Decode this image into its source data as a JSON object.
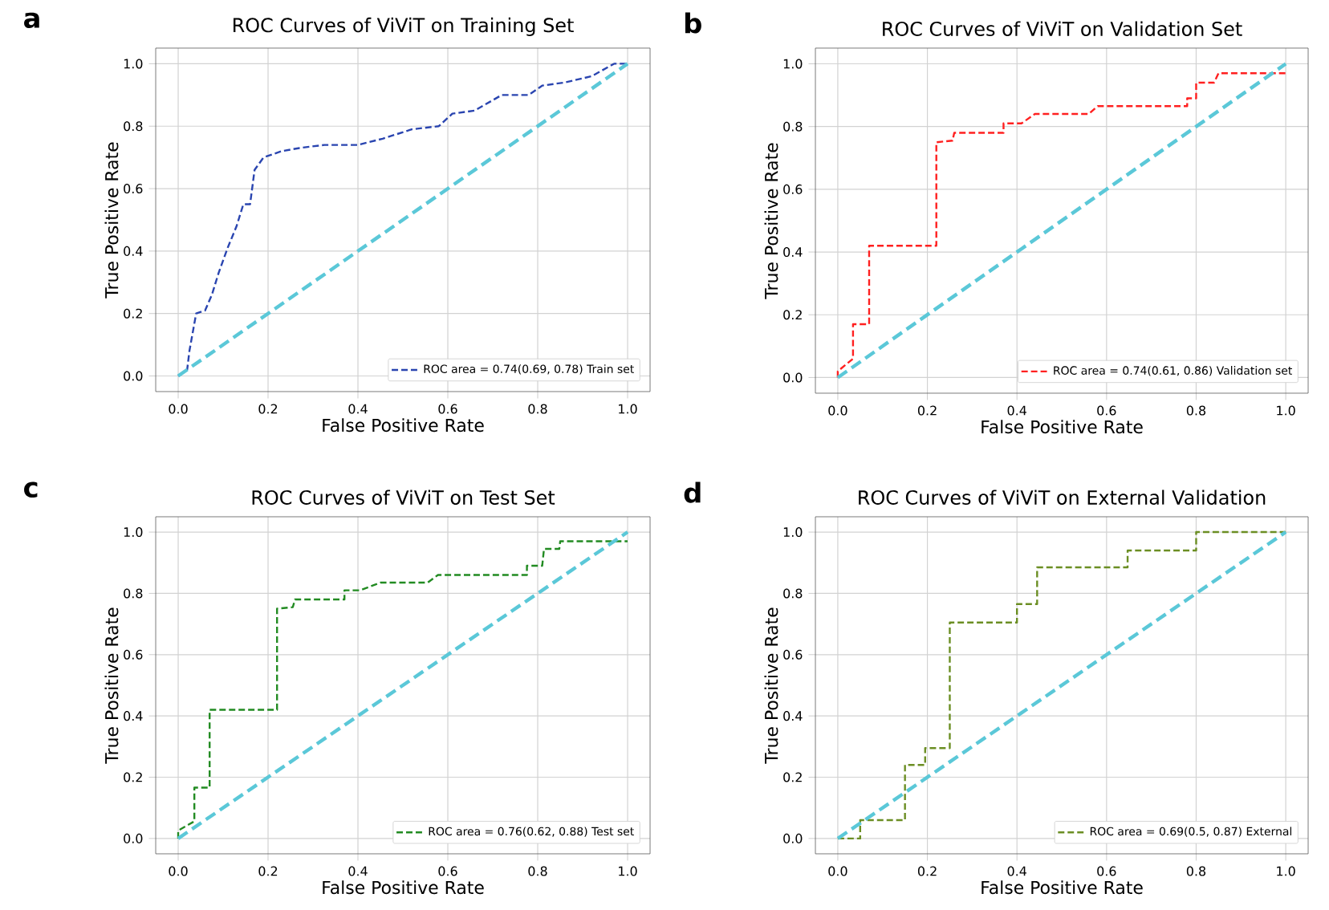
{
  "chart_data": [
    {
      "type": "line",
      "title": "ROC Curves of ViViT on Training Set",
      "xlabel": "False Positive Rate",
      "ylabel": "True Positive Rate",
      "annotations": [
        "a"
      ],
      "xlim": [
        -0.05,
        1.05
      ],
      "ylim": [
        -0.05,
        1.05
      ],
      "xticks": [
        {
          "value": 0,
          "label": "0.0"
        },
        {
          "value": 0.2,
          "label": "0.2"
        },
        {
          "value": 0.4,
          "label": "0.4"
        },
        {
          "value": 0.6,
          "label": "0.6"
        },
        {
          "value": 0.8,
          "label": "0.8"
        },
        {
          "value": 1,
          "label": "1.0"
        }
      ],
      "yticks": [
        {
          "value": 0,
          "label": "0.0"
        },
        {
          "value": 0.2,
          "label": "0.2"
        },
        {
          "value": 0.4,
          "label": "0.4"
        },
        {
          "value": 0.6,
          "label": "0.6"
        },
        {
          "value": 0.8,
          "label": "0.8"
        },
        {
          "value": 1,
          "label": "1.0"
        }
      ],
      "grid": true,
      "legend": "bottom right",
      "line_style": "dashed",
      "marker": "none",
      "series": [
        {
          "name": "ROC area = 0.74(0.69, 0.78) Train set",
          "color": "#2a45b0",
          "x": [
            0,
            0.02,
            0.025,
            0.04,
            0.06,
            0.075,
            0.09,
            0.11,
            0.13,
            0.145,
            0.16,
            0.17,
            0.19,
            0.23,
            0.27,
            0.325,
            0.4,
            0.455,
            0.52,
            0.58,
            0.61,
            0.66,
            0.72,
            0.78,
            0.81,
            0.86,
            0.92,
            0.97,
            1
          ],
          "values": [
            0,
            0.02,
            0.08,
            0.2,
            0.21,
            0.26,
            0.33,
            0.41,
            0.48,
            0.55,
            0.55,
            0.66,
            0.7,
            0.72,
            0.73,
            0.74,
            0.74,
            0.76,
            0.79,
            0.8,
            0.84,
            0.85,
            0.9,
            0.9,
            0.93,
            0.94,
            0.96,
            1,
            1
          ]
        },
        {
          "color": "#5bc8d8",
          "x": [
            0,
            1
          ],
          "values": [
            0,
            1
          ]
        }
      ]
    },
    {
      "type": "line",
      "title": "ROC Curves of ViViT on Validation Set",
      "xlabel": "False Positive Rate",
      "ylabel": "True Positive Rate",
      "annotations": [
        "b"
      ],
      "xlim": [
        -0.05,
        1.05
      ],
      "ylim": [
        -0.05,
        1.05
      ],
      "xticks": [
        {
          "value": 0,
          "label": "0.0"
        },
        {
          "value": 0.2,
          "label": "0.2"
        },
        {
          "value": 0.4,
          "label": "0.4"
        },
        {
          "value": 0.6,
          "label": "0.6"
        },
        {
          "value": 0.8,
          "label": "0.8"
        },
        {
          "value": 1,
          "label": "1.0"
        }
      ],
      "yticks": [
        {
          "value": 0,
          "label": "0.0"
        },
        {
          "value": 0.2,
          "label": "0.2"
        },
        {
          "value": 0.4,
          "label": "0.4"
        },
        {
          "value": 0.6,
          "label": "0.6"
        },
        {
          "value": 0.8,
          "label": "0.8"
        },
        {
          "value": 1,
          "label": "1.0"
        }
      ],
      "grid": true,
      "legend": "bottom right",
      "line_style": "dashed",
      "marker": "none",
      "series": [
        {
          "name": "ROC area = 0.74(0.61, 0.86) Validation set",
          "color": "#ff2020",
          "x": [
            0,
            0,
            0.034,
            0.034,
            0.07,
            0.07,
            0.22,
            0.22,
            0.256,
            0.26,
            0.37,
            0.37,
            0.41,
            0.44,
            0.56,
            0.58,
            0.78,
            0.78,
            0.8,
            0.8,
            0.84,
            0.85,
            1
          ],
          "values": [
            0,
            0.02,
            0.06,
            0.17,
            0.17,
            0.42,
            0.42,
            0.75,
            0.755,
            0.78,
            0.78,
            0.81,
            0.81,
            0.84,
            0.84,
            0.865,
            0.865,
            0.89,
            0.89,
            0.94,
            0.94,
            0.97,
            0.97
          ]
        },
        {
          "color": "#5bc8d8",
          "x": [
            0,
            1
          ],
          "values": [
            0,
            1
          ]
        }
      ]
    },
    {
      "type": "line",
      "title": "ROC Curves of ViViT on Test Set",
      "xlabel": "False Positive Rate",
      "ylabel": "True Positive Rate",
      "annotations": [
        "c"
      ],
      "xlim": [
        -0.05,
        1.05
      ],
      "ylim": [
        -0.05,
        1.05
      ],
      "xticks": [
        {
          "value": 0,
          "label": "0.0"
        },
        {
          "value": 0.2,
          "label": "0.2"
        },
        {
          "value": 0.4,
          "label": "0.4"
        },
        {
          "value": 0.6,
          "label": "0.6"
        },
        {
          "value": 0.8,
          "label": "0.8"
        },
        {
          "value": 1,
          "label": "1.0"
        }
      ],
      "yticks": [
        {
          "value": 0,
          "label": "0.0"
        },
        {
          "value": 0.2,
          "label": "0.2"
        },
        {
          "value": 0.4,
          "label": "0.4"
        },
        {
          "value": 0.6,
          "label": "0.6"
        },
        {
          "value": 0.8,
          "label": "0.8"
        },
        {
          "value": 1,
          "label": "1.0"
        }
      ],
      "grid": true,
      "legend": "bottom right",
      "line_style": "dashed",
      "marker": "none",
      "series": [
        {
          "name": "ROC area = 0.76(0.62, 0.88) Test set",
          "color": "#228b22",
          "x": [
            0,
            0,
            0.036,
            0.036,
            0.07,
            0.07,
            0.22,
            0.22,
            0.255,
            0.26,
            0.37,
            0.37,
            0.405,
            0.45,
            0.555,
            0.578,
            0.776,
            0.776,
            0.81,
            0.814,
            0.848,
            0.85,
            1
          ],
          "values": [
            0,
            0.026,
            0.056,
            0.166,
            0.166,
            0.42,
            0.42,
            0.75,
            0.755,
            0.78,
            0.78,
            0.81,
            0.81,
            0.835,
            0.835,
            0.86,
            0.86,
            0.89,
            0.89,
            0.945,
            0.945,
            0.97,
            0.97
          ]
        },
        {
          "color": "#5bc8d8",
          "x": [
            0,
            1
          ],
          "values": [
            0,
            1
          ]
        }
      ]
    },
    {
      "type": "line",
      "title": "ROC Curves of ViViT on External Validation",
      "xlabel": "False Positive Rate",
      "ylabel": "True Positive Rate",
      "annotations": [
        "d"
      ],
      "xlim": [
        -0.05,
        1.05
      ],
      "ylim": [
        -0.05,
        1.05
      ],
      "xticks": [
        {
          "value": 0,
          "label": "0.0"
        },
        {
          "value": 0.2,
          "label": "0.2"
        },
        {
          "value": 0.4,
          "label": "0.4"
        },
        {
          "value": 0.6,
          "label": "0.6"
        },
        {
          "value": 0.8,
          "label": "0.8"
        },
        {
          "value": 1,
          "label": "1.0"
        }
      ],
      "yticks": [
        {
          "value": 0,
          "label": "0.0"
        },
        {
          "value": 0.2,
          "label": "0.2"
        },
        {
          "value": 0.4,
          "label": "0.4"
        },
        {
          "value": 0.6,
          "label": "0.6"
        },
        {
          "value": 0.8,
          "label": "0.8"
        },
        {
          "value": 1,
          "label": "1.0"
        }
      ],
      "grid": true,
      "legend": "bottom right",
      "line_style": "dashed",
      "marker": "none",
      "series": [
        {
          "name": "ROC area = 0.69(0.5, 0.87) External",
          "color": "#6b8e23",
          "x": [
            0,
            0.05,
            0.05,
            0.15,
            0.15,
            0.195,
            0.195,
            0.25,
            0.25,
            0.4,
            0.4,
            0.445,
            0.445,
            0.647,
            0.647,
            0.8,
            0.8,
            1
          ],
          "values": [
            0,
            0,
            0.06,
            0.06,
            0.24,
            0.24,
            0.295,
            0.295,
            0.705,
            0.705,
            0.765,
            0.765,
            0.885,
            0.885,
            0.94,
            0.94,
            1,
            1
          ]
        },
        {
          "color": "#5bc8d8",
          "x": [
            0,
            1
          ],
          "values": [
            0,
            1
          ]
        }
      ]
    }
  ]
}
